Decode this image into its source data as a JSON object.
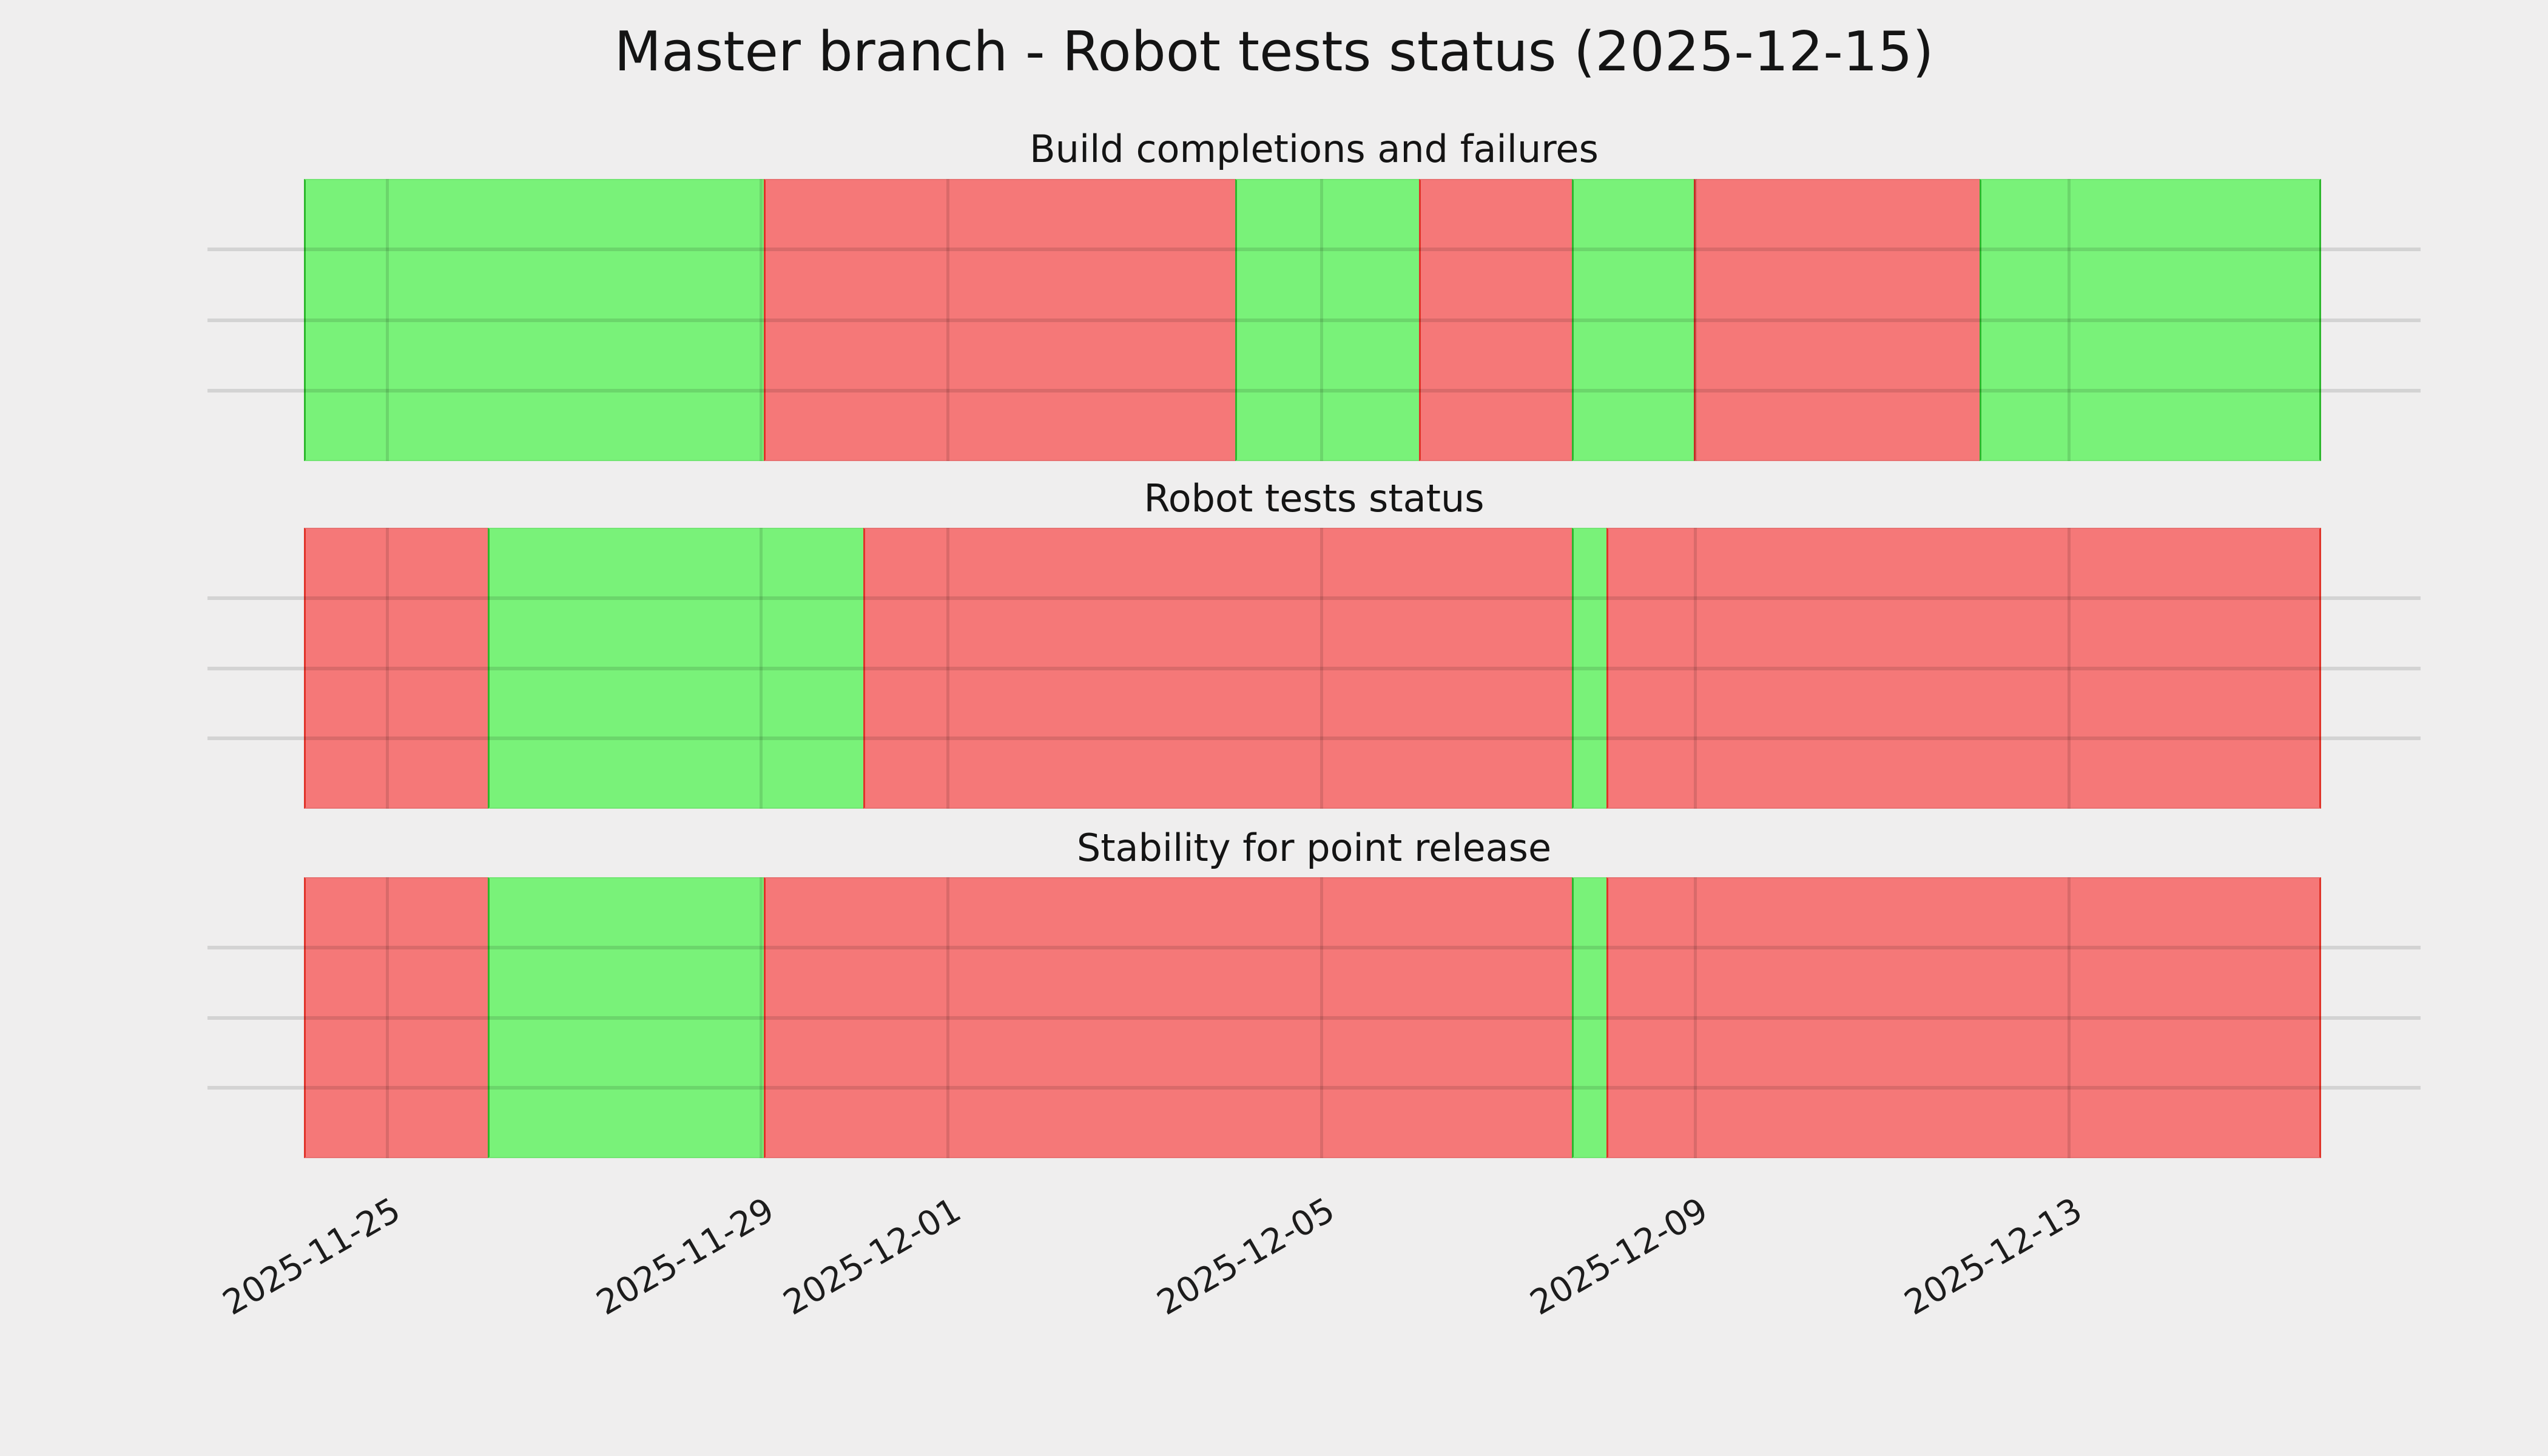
{
  "figure": {
    "title": "Master branch - Robot tests status (2025-12-15)",
    "background_color": "#efeeee",
    "text_color": "#141414"
  },
  "chart_data": {
    "type": "bar",
    "subtype": "status-timeline-broken-barh",
    "title": "Master branch - Robot tests status (2025-12-15)",
    "grid": true,
    "legend": "none",
    "time_axis": {
      "start": "2025-11-24 02:00",
      "end": "2025-12-15 16:00",
      "tick_labels": [
        "2025-11-25",
        "2025-11-29",
        "2025-12-01",
        "2025-12-05",
        "2025-12-09",
        "2025-12-13"
      ],
      "tick_positions_pct": [
        4.12,
        22.65,
        31.91,
        50.44,
        68.96,
        87.49
      ],
      "tick_rotation_deg": 30
    },
    "status_colors": {
      "pass_fill": "#79f279",
      "pass_edge": "#2db82d",
      "fail_fill": "#f57878",
      "fail_edge": "#e0342a"
    },
    "panels": [
      {
        "title": "Build completions and failures",
        "segments": [
          {
            "status": "pass",
            "start": "2025-11-24 02:00",
            "end": "2025-11-29 01:00",
            "x0_pct": 0,
            "x1_pct": 22.8
          },
          {
            "status": "fail",
            "start": "2025-11-29 01:00",
            "end": "2025-12-04 02:00",
            "x0_pct": 22.8,
            "x1_pct": 46.17
          },
          {
            "status": "pass",
            "start": "2025-12-04 02:00",
            "end": "2025-12-06 01:00",
            "x0_pct": 46.17,
            "x1_pct": 55.28
          },
          {
            "status": "fail",
            "start": "2025-12-06 01:00",
            "end": "2025-12-07 16:00",
            "x0_pct": 55.28,
            "x1_pct": 62.86
          },
          {
            "status": "pass",
            "start": "2025-12-07 16:00",
            "end": "2025-12-09 00:00",
            "x0_pct": 62.86,
            "x1_pct": 68.9
          },
          {
            "status": "fail",
            "start": "2025-12-09 00:00",
            "end": "2025-12-12 01:00",
            "x0_pct": 68.9,
            "x1_pct": 83.07
          },
          {
            "status": "pass",
            "start": "2025-12-12 01:00",
            "end": "2025-12-15 16:00",
            "x0_pct": 83.07,
            "x1_pct": 100
          }
        ]
      },
      {
        "title": "Robot tests status",
        "segments": [
          {
            "status": "fail",
            "start": "2025-11-24 02:00",
            "end": "2025-11-26 02:00",
            "x0_pct": 0,
            "x1_pct": 9.11
          },
          {
            "status": "pass",
            "start": "2025-11-26 02:00",
            "end": "2025-11-30 02:00",
            "x0_pct": 9.11,
            "x1_pct": 27.73
          },
          {
            "status": "fail",
            "start": "2025-11-30 02:00",
            "end": "2025-12-07 16:00",
            "x0_pct": 27.73,
            "x1_pct": 62.86
          },
          {
            "status": "pass",
            "start": "2025-12-07 16:00",
            "end": "2025-12-08 01:00",
            "x0_pct": 62.86,
            "x1_pct": 64.57
          },
          {
            "status": "fail",
            "start": "2025-12-08 01:00",
            "end": "2025-12-15 16:00",
            "x0_pct": 64.57,
            "x1_pct": 100
          }
        ]
      },
      {
        "title": "Stability for point release",
        "segments": [
          {
            "status": "fail",
            "start": "2025-11-24 02:00",
            "end": "2025-11-26 02:00",
            "x0_pct": 0,
            "x1_pct": 9.11
          },
          {
            "status": "pass",
            "start": "2025-11-26 02:00",
            "end": "2025-11-29 01:00",
            "x0_pct": 9.11,
            "x1_pct": 22.8
          },
          {
            "status": "fail",
            "start": "2025-11-29 01:00",
            "end": "2025-12-07 16:00",
            "x0_pct": 22.8,
            "x1_pct": 62.86
          },
          {
            "status": "pass",
            "start": "2025-12-07 16:00",
            "end": "2025-12-08 01:00",
            "x0_pct": 62.86,
            "x1_pct": 64.57
          },
          {
            "status": "fail",
            "start": "2025-12-08 01:00",
            "end": "2025-12-15 16:00",
            "x0_pct": 64.57,
            "x1_pct": 100
          }
        ]
      }
    ]
  }
}
